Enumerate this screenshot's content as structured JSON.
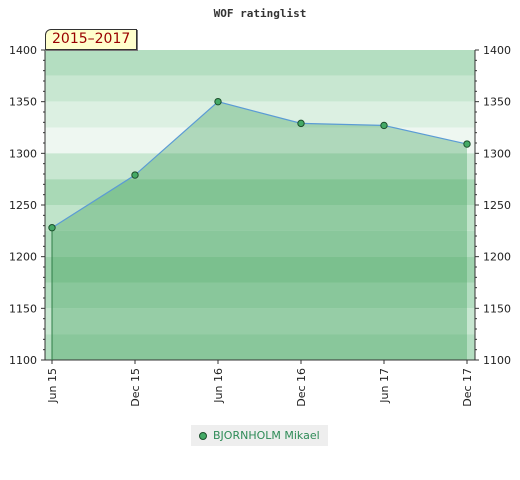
{
  "colors": {
    "line": "#5b9bd5",
    "marker_fill": "#44aa66",
    "marker_stroke": "#1c4f2c",
    "area_fill": "#3a9e56",
    "band_dark": "#82c69a",
    "band_light": "#eef7f1",
    "legend_text": "#2e8b57",
    "period_text": "#990000"
  },
  "chart_data": {
    "type": "area",
    "title": "WOF ratinglist",
    "period_label": "2015–2017",
    "x_ticks": [
      "Jun 15",
      "Dec 15",
      "Jun 16",
      "Dec 16",
      "Jun 17",
      "Dec 17"
    ],
    "ylim": [
      1100,
      1400
    ],
    "y_ticks": [
      1100,
      1150,
      1200,
      1250,
      1300,
      1350,
      1400
    ],
    "series": [
      {
        "name": "BJORNHOLM Mikael",
        "points": [
          {
            "x": "2015-06",
            "y": 1228
          },
          {
            "x": "2015-12",
            "y": 1279
          },
          {
            "x": "2016-06",
            "y": 1350
          },
          {
            "x": "2016-12",
            "y": 1329
          },
          {
            "x": "2017-06",
            "y": 1327
          },
          {
            "x": "2017-12",
            "y": 1309
          }
        ]
      }
    ],
    "legend_position": "bottom"
  }
}
